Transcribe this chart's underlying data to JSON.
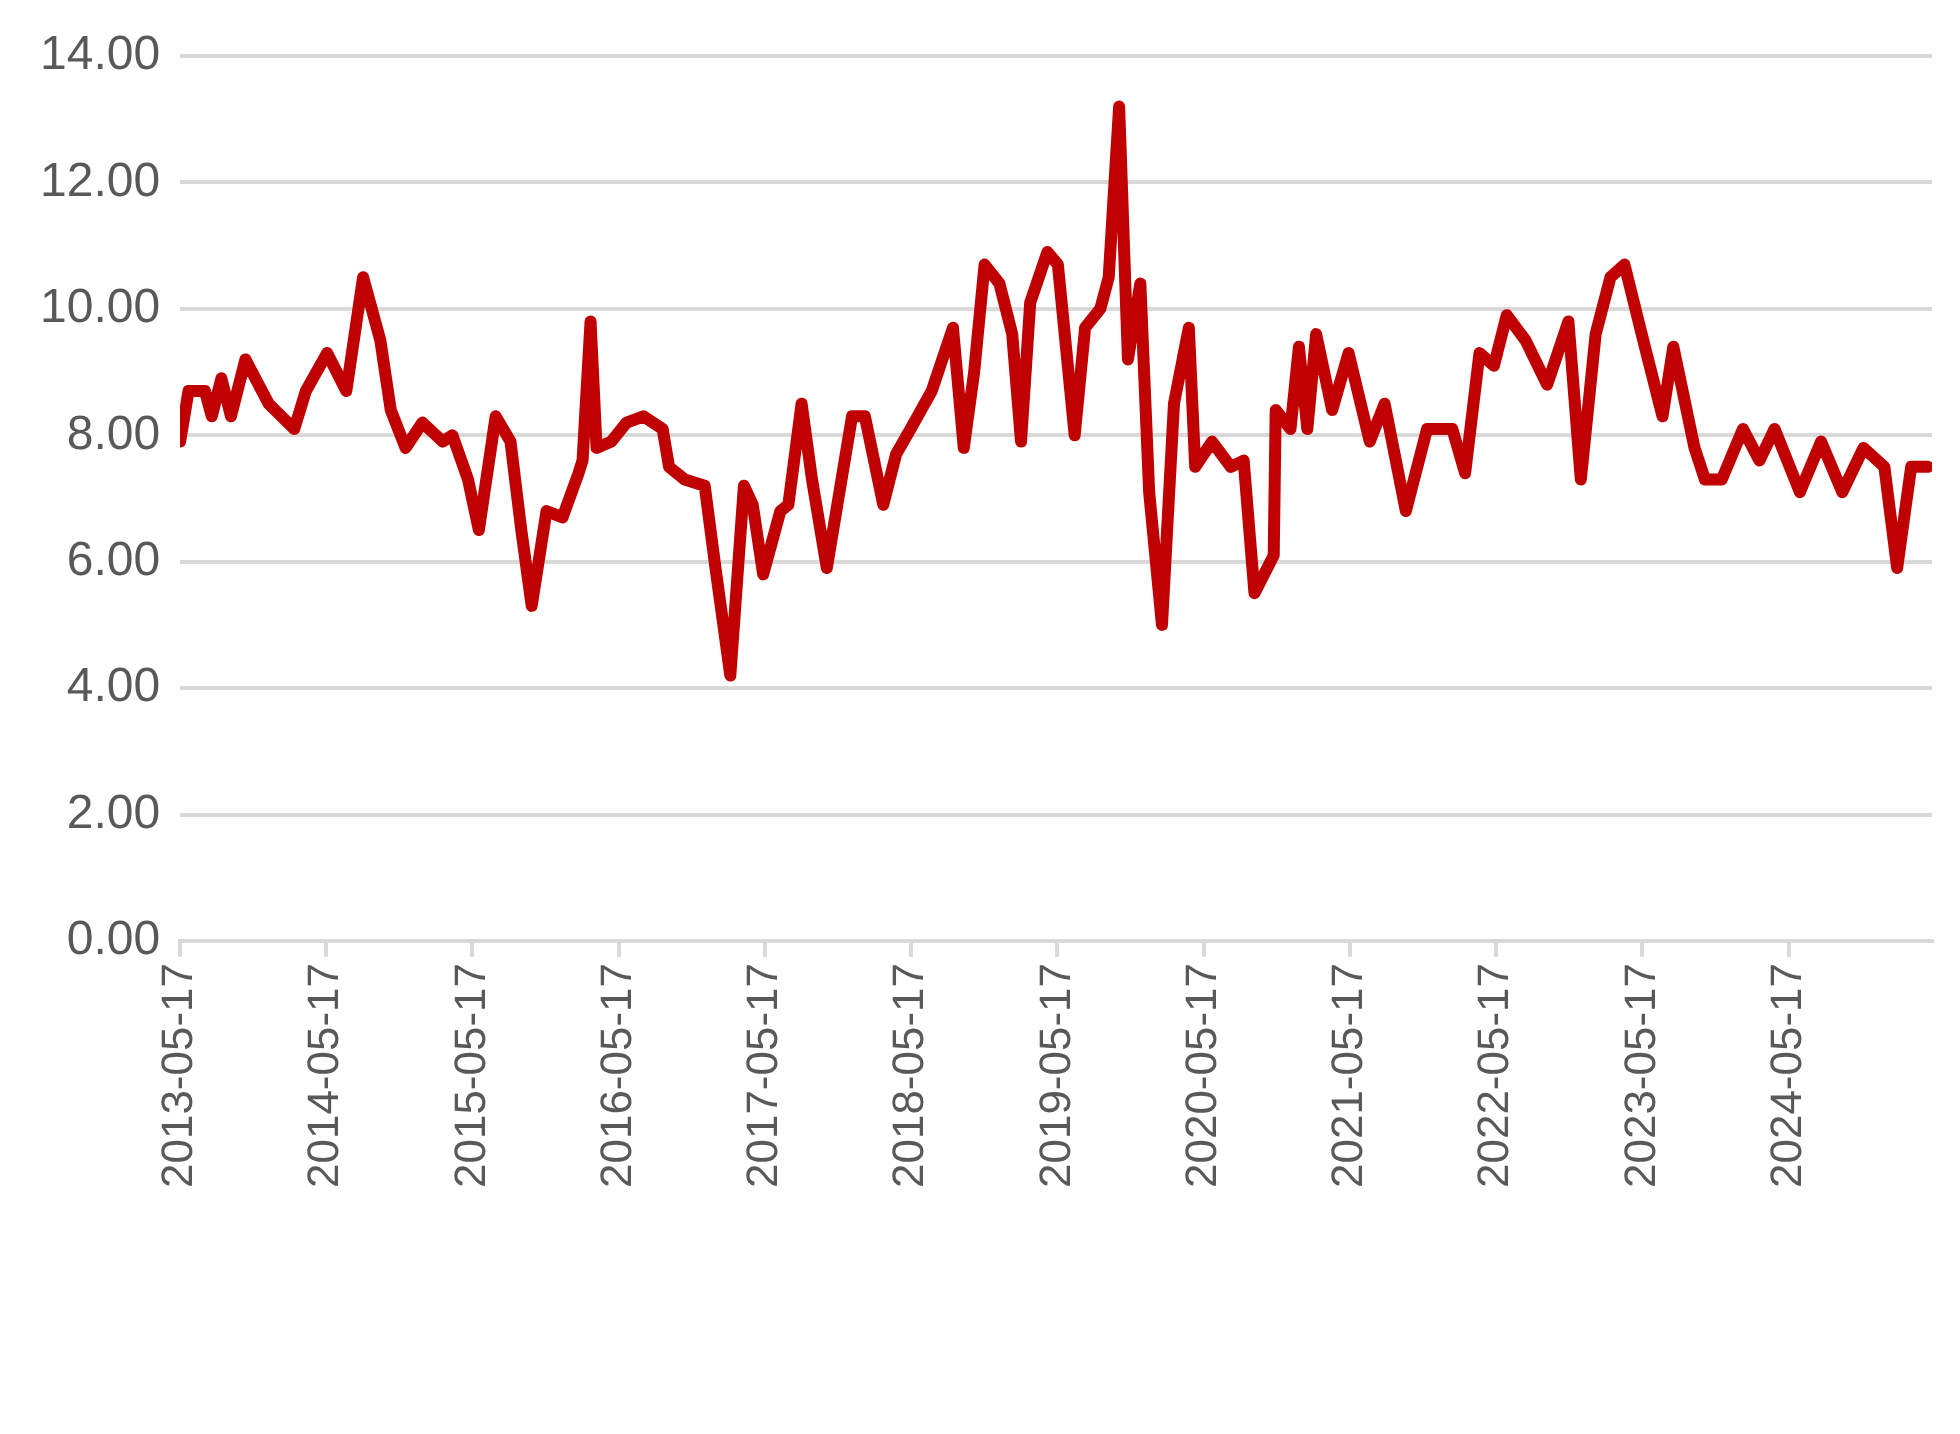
{
  "chart_data": {
    "type": "line",
    "x": [
      "2013-05-17",
      "2013-06-07",
      "2013-07-18",
      "2013-08-04",
      "2013-08-28",
      "2013-09-21",
      "2013-10-27",
      "2013-12-24",
      "2014-02-26",
      "2014-03-27",
      "2014-05-19",
      "2014-07-06",
      "2014-08-17",
      "2014-09-29",
      "2014-10-25",
      "2014-12-01",
      "2015-01-12",
      "2015-03-04",
      "2015-03-28",
      "2015-05-06",
      "2015-06-02",
      "2015-07-14",
      "2015-08-20",
      "2015-09-16",
      "2015-10-12",
      "2015-11-18",
      "2015-12-28",
      "2016-02-06",
      "2016-02-16",
      "2016-03-07",
      "2016-03-22",
      "2016-04-28",
      "2016-06-05",
      "2016-07-17",
      "2016-09-03",
      "2016-09-19",
      "2016-10-28",
      "2016-12-17",
      "2017-01-13",
      "2017-02-19",
      "2017-03-25",
      "2017-04-16",
      "2017-05-12",
      "2017-06-24",
      "2017-07-14",
      "2017-08-16",
      "2017-09-11",
      "2017-10-18",
      "2017-12-20",
      "2018-01-21",
      "2018-03-08",
      "2018-04-09",
      "2018-05-15",
      "2018-07-07",
      "2018-08-29",
      "2018-09-25",
      "2018-10-21",
      "2018-11-16",
      "2018-12-23",
      "2019-01-24",
      "2019-02-15",
      "2019-03-10",
      "2019-04-22",
      "2019-05-18",
      "2019-06-29",
      "2019-07-25",
      "2019-09-01",
      "2019-09-22",
      "2019-10-18",
      "2019-11-09",
      "2019-12-10",
      "2020-01-01",
      "2020-02-02",
      "2020-03-03",
      "2020-04-09",
      "2020-04-25",
      "2020-06-06",
      "2020-07-23",
      "2020-08-24",
      "2020-09-20",
      "2020-11-07",
      "2020-11-12",
      "2020-12-19",
      "2021-01-09",
      "2021-01-30",
      "2021-02-21",
      "2021-04-02",
      "2021-05-13",
      "2021-07-05",
      "2021-08-11",
      "2021-10-03",
      "2021-11-25",
      "2022-01-27",
      "2022-02-28",
      "2022-04-05",
      "2022-05-11",
      "2022-06-12",
      "2022-07-29",
      "2022-09-21",
      "2022-11-13",
      "2022-12-14",
      "2023-01-20",
      "2023-02-26",
      "2023-04-02",
      "2023-05-19",
      "2023-07-06",
      "2023-08-02",
      "2023-09-24",
      "2023-10-20",
      "2023-12-01",
      "2024-01-23",
      "2024-03-04",
      "2024-04-11",
      "2024-06-13",
      "2024-08-05",
      "2024-09-27",
      "2024-11-19",
      "2025-01-10",
      "2025-02-11",
      "2025-03-18",
      "2025-04-29"
    ],
    "series": [
      {
        "color": "#c00000",
        "values": [
          7.9,
          8.7,
          8.7,
          8.3,
          8.9,
          8.3,
          9.2,
          8.5,
          8.1,
          8.7,
          9.3,
          8.7,
          10.5,
          9.5,
          8.4,
          7.8,
          8.2,
          7.9,
          8.0,
          7.3,
          6.5,
          8.3,
          7.9,
          6.5,
          5.3,
          6.8,
          6.7,
          7.4,
          7.6,
          9.8,
          7.8,
          7.9,
          8.2,
          8.3,
          8.1,
          7.5,
          7.3,
          7.2,
          5.9,
          4.2,
          7.2,
          6.9,
          5.8,
          6.8,
          6.9,
          8.5,
          7.3,
          5.9,
          8.3,
          8.3,
          6.9,
          7.7,
          8.1,
          8.7,
          9.7,
          7.8,
          9.0,
          10.7,
          10.4,
          9.6,
          7.9,
          10.1,
          10.9,
          10.7,
          8.0,
          9.7,
          10.0,
          10.5,
          13.2,
          9.2,
          10.4,
          7.1,
          5.0,
          8.5,
          9.7,
          7.5,
          7.9,
          7.5,
          7.6,
          5.5,
          6.1,
          8.4,
          8.1,
          9.4,
          8.1,
          9.6,
          8.4,
          9.3,
          7.9,
          8.5,
          6.8,
          8.1,
          8.1,
          7.4,
          9.3,
          9.1,
          9.9,
          9.5,
          8.8,
          9.8,
          7.3,
          9.6,
          10.5,
          10.7,
          9.5,
          8.3,
          9.4,
          7.8,
          7.3,
          7.3,
          8.1,
          7.6,
          8.1,
          7.1,
          7.9,
          7.1,
          7.8,
          7.5,
          5.9,
          7.5,
          7.5
        ]
      }
    ],
    "xlim": [
      "2013-05-17",
      "2025-05-09"
    ],
    "xticks": [
      "2013-05-17",
      "2014-05-17",
      "2015-05-17",
      "2016-05-17",
      "2017-05-17",
      "2018-05-17",
      "2019-05-17",
      "2020-05-17",
      "2021-05-17",
      "2022-05-17",
      "2023-05-17",
      "2024-05-17"
    ],
    "ylim": [
      0,
      14
    ],
    "yticks": [
      {
        "value": 0,
        "label": "0.00"
      },
      {
        "value": 2,
        "label": "2.00"
      },
      {
        "value": 4,
        "label": "4.00"
      },
      {
        "value": 6,
        "label": "6.00"
      },
      {
        "value": 8,
        "label": "8.00"
      },
      {
        "value": 10,
        "label": "10.00"
      },
      {
        "value": 12,
        "label": "12.00"
      },
      {
        "value": 14,
        "label": "14.00"
      }
    ],
    "grid": "y",
    "marker": "none",
    "line_style": "solid"
  }
}
